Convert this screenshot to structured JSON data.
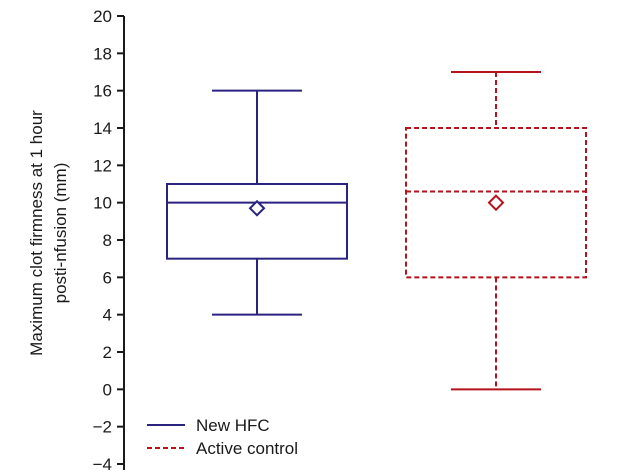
{
  "chart_data": {
    "type": "boxplot",
    "title": "",
    "xlabel": "",
    "ylabel": [
      "Maximum clot firmness at 1 hour",
      "posti-nfusion (mm)"
    ],
    "ylim": [
      -4,
      20
    ],
    "yticks": [
      20,
      18,
      16,
      14,
      12,
      10,
      8,
      6,
      4,
      2,
      0,
      -2,
      -4
    ],
    "ytick_labels": [
      "20",
      "18",
      "16",
      "14",
      "12",
      "10",
      "8",
      "6",
      "4",
      "2",
      "0",
      "−2",
      "−4"
    ],
    "grid": false,
    "legend_position": "bottom-left",
    "series": [
      {
        "name": "New HFC",
        "color": "#2a2380",
        "line_style": "solid",
        "min": 4,
        "q1": 7,
        "median": 10,
        "q3": 11,
        "max": 16,
        "mean": 9.7
      },
      {
        "name": "Active control",
        "color": "#b5121b",
        "line_style": "dashed",
        "min": 0,
        "q1": 6,
        "median": 10.6,
        "q3": 14,
        "max": 17,
        "mean": 10
      }
    ]
  }
}
